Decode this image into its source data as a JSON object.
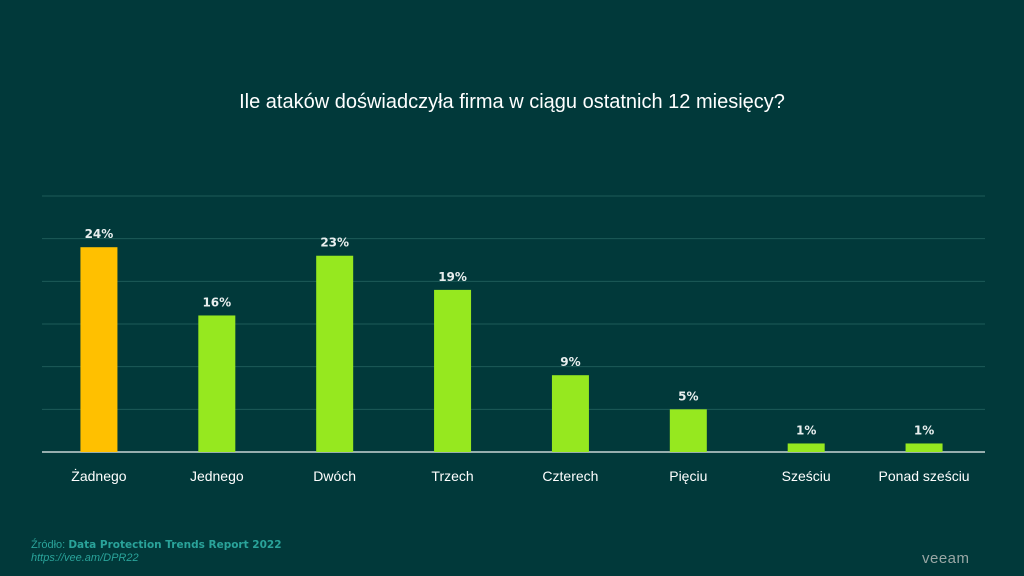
{
  "chart_data": {
    "type": "bar",
    "title": "Ile ataków doświadczyła firma w ciągu ostatnich 12 miesięcy?",
    "categories": [
      "Żadnego",
      "Jednego",
      "Dwóch",
      "Trzech",
      "Czterech",
      "Pięciu",
      "Sześciu",
      "Ponad sześciu"
    ],
    "values": [
      24,
      16,
      23,
      19,
      9,
      5,
      1,
      1
    ],
    "data_labels": [
      "24%",
      "16%",
      "23%",
      "19%",
      "9%",
      "5%",
      "1%",
      "1%"
    ],
    "colors": [
      "#ffc000",
      "#96e81f",
      "#96e81f",
      "#96e81f",
      "#96e81f",
      "#96e81f",
      "#96e81f",
      "#96e81f"
    ],
    "ylim": [
      0,
      30
    ],
    "grid": true,
    "grid_step": 5,
    "xlabel": "",
    "ylabel": ""
  },
  "source": {
    "prefix": "Źródło:",
    "name": "Data Protection Trends Report 2022",
    "url": "https://vee.am/DPR22"
  },
  "logo": "veeam"
}
